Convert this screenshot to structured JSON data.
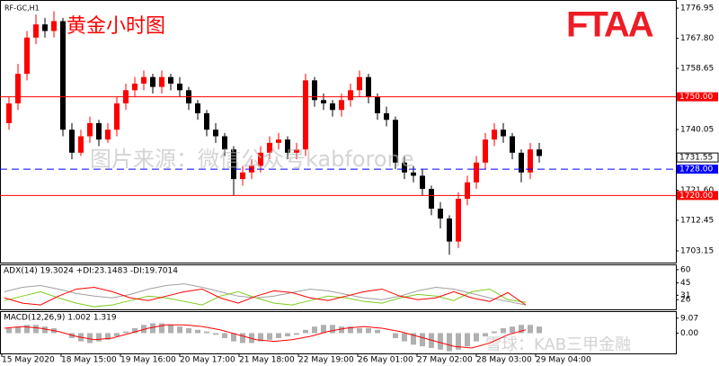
{
  "symbol": "RF-GC,H1",
  "title": "黄金小时图",
  "logo": "FTAA",
  "watermark": "图片来源：微信公众号kabforone",
  "watermark2": "雪球：KAB三甲金融",
  "chart_data": [
    {
      "type": "candlestick",
      "open": [
        1742,
        1748,
        1757,
        1768,
        1772,
        1770,
        1773,
        1740,
        1733,
        1738,
        1742,
        1737,
        1740,
        1748,
        1752,
        1754,
        1756,
        1753,
        1756,
        1754,
        1752,
        1748,
        1745,
        1740,
        1738,
        1734,
        1725,
        1727,
        1729,
        1733,
        1736,
        1737,
        1733,
        1734,
        1755,
        1749,
        1748,
        1746,
        1749,
        1752,
        1756,
        1750,
        1745,
        1743,
        1730,
        1727,
        1726,
        1722,
        1716,
        1713,
        1706,
        1719,
        1724,
        1730,
        1737,
        1740,
        1738,
        1733,
        1727,
        1734
      ],
      "high": [
        1750,
        1760,
        1770,
        1775,
        1774,
        1776,
        1774,
        1742,
        1740,
        1744,
        1743,
        1742,
        1750,
        1754,
        1756,
        1758,
        1757,
        1758,
        1757,
        1756,
        1753,
        1749,
        1746,
        1742,
        1739,
        1735,
        1729,
        1731,
        1735,
        1738,
        1739,
        1738,
        1736,
        1757,
        1756,
        1751,
        1749,
        1751,
        1754,
        1758,
        1757,
        1751,
        1747,
        1744,
        1732,
        1729,
        1728,
        1723,
        1718,
        1714,
        1721,
        1726,
        1732,
        1739,
        1742,
        1742,
        1739,
        1734,
        1736,
        1736
      ],
      "low": [
        1740,
        1746,
        1755,
        1766,
        1768,
        1768,
        1738,
        1731,
        1732,
        1736,
        1735,
        1736,
        1738,
        1746,
        1750,
        1752,
        1751,
        1751,
        1752,
        1750,
        1746,
        1743,
        1738,
        1736,
        1732,
        1720,
        1723,
        1725,
        1727,
        1731,
        1734,
        1731,
        1731,
        1732,
        1747,
        1746,
        1744,
        1744,
        1747,
        1750,
        1748,
        1743,
        1741,
        1728,
        1725,
        1724,
        1720,
        1714,
        1710,
        1702,
        1704,
        1717,
        1722,
        1728,
        1735,
        1736,
        1731,
        1724,
        1725,
        1730
      ],
      "close": [
        1748,
        1757,
        1768,
        1772,
        1770,
        1773,
        1740,
        1733,
        1738,
        1742,
        1737,
        1740,
        1748,
        1752,
        1754,
        1756,
        1753,
        1756,
        1754,
        1752,
        1748,
        1745,
        1740,
        1738,
        1734,
        1725,
        1727,
        1729,
        1733,
        1736,
        1737,
        1733,
        1734,
        1755,
        1749,
        1748,
        1746,
        1749,
        1752,
        1756,
        1750,
        1745,
        1743,
        1730,
        1727,
        1726,
        1722,
        1716,
        1713,
        1706,
        1719,
        1724,
        1730,
        1737,
        1740,
        1738,
        1733,
        1727,
        1734,
        1732
      ],
      "up_color": "#ff0000",
      "down_color": "#000000",
      "ylim": [
        1699.6,
        1779.15
      ],
      "yticks": [
        {
          "value": 1776.95,
          "label": "1776.95"
        },
        {
          "value": 1767.8,
          "label": "1767.80"
        },
        {
          "value": 1758.65,
          "label": "1758.65"
        },
        {
          "value": 1740.05,
          "label": "1740.05"
        },
        {
          "value": 1721.6,
          "label": "1721.60"
        },
        {
          "value": 1712.45,
          "label": "1712.45"
        },
        {
          "value": 1703.15,
          "label": "1703.15"
        }
      ],
      "levels": [
        {
          "value": 1750,
          "label": "1750.00",
          "color": "#ff0000",
          "dashed": false
        },
        {
          "value": 1728,
          "label": "1728.00",
          "color": "#0000ff",
          "dashed": true
        },
        {
          "value": 1720,
          "label": "1720.00",
          "color": "#ff0000",
          "dashed": false
        }
      ],
      "current_price": {
        "value": 1731.55,
        "label": "1731.55"
      },
      "x_labels": [
        "15 May 2020",
        "18 May 15:00",
        "19 May 16:00",
        "20 May 17:00",
        "21 May 18:00",
        "22 May 19:00",
        "26 May 01:00",
        "27 May 02:00",
        "28 May 03:00",
        "29 May 04:00"
      ]
    },
    {
      "type": "line",
      "title": "ADX(14) 19.3024 +DI:23.1483 -DI:19.7014",
      "series": [
        {
          "color": "#a0a0a0",
          "values": [
            35,
            40,
            42,
            38,
            33,
            30,
            28,
            32,
            38,
            42,
            44,
            40,
            35,
            30,
            28,
            30,
            34,
            38,
            36,
            32,
            28,
            26,
            30,
            36,
            40,
            38,
            33,
            28,
            24,
            20
          ]
        },
        {
          "color": "#7fcc1f",
          "values": [
            25,
            30,
            35,
            28,
            22,
            18,
            20,
            25,
            30,
            28,
            24,
            20,
            30,
            35,
            28,
            22,
            20,
            25,
            30,
            28,
            24,
            22,
            28,
            32,
            30,
            25,
            35,
            38,
            26,
            23
          ]
        },
        {
          "color": "#ff0000",
          "values": [
            28,
            22,
            20,
            30,
            38,
            40,
            35,
            28,
            25,
            30,
            35,
            38,
            28,
            22,
            30,
            36,
            34,
            28,
            25,
            30,
            35,
            38,
            30,
            26,
            28,
            35,
            28,
            24,
            34,
            20
          ]
        }
      ],
      "ylim": [
        15,
        65
      ],
      "yticks": [
        60,
        45,
        31,
        26
      ]
    },
    {
      "type": "combo",
      "title": "MACD(12,26,9) 1.002 1.319",
      "series": [
        {
          "kind": "bar",
          "color": "#b0b0b0",
          "values": [
            3,
            4,
            5,
            5,
            4,
            3,
            0,
            -3,
            -5,
            -6,
            -5,
            -4,
            -2,
            1,
            3,
            5,
            6,
            6,
            5,
            4,
            3,
            2,
            1,
            -1,
            -3,
            -5,
            -6,
            -6,
            -5,
            -4,
            -3,
            -2,
            -1,
            2,
            4,
            5,
            5,
            4,
            4,
            3,
            3,
            2,
            0,
            -3,
            -5,
            -7,
            -8,
            -9,
            -10,
            -11,
            -10,
            -8,
            -5,
            -2,
            1,
            3,
            4,
            5,
            5,
            4
          ]
        },
        {
          "kind": "line",
          "color": "#ff0000",
          "values": [
            3,
            4,
            3,
            1,
            -2,
            -4,
            -3,
            0,
            3,
            5,
            5,
            4,
            2,
            -1,
            -4,
            -5,
            -4,
            -2,
            1,
            3,
            4,
            3,
            1,
            -2,
            -5,
            -8,
            -9,
            -6,
            -1,
            2
          ]
        }
      ],
      "ylim": [
        -12.3,
        12.8
      ],
      "yticks": [
        {
          "value": 9.07,
          "label": "9.07"
        },
        {
          "value": 0,
          "label": "0.00"
        }
      ]
    }
  ]
}
